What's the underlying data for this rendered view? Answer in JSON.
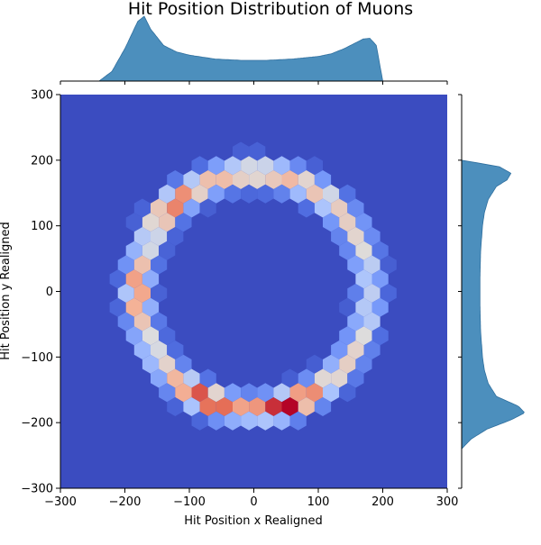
{
  "chart_data": {
    "type": "heatmap",
    "subtype": "hexbin-joint-plot",
    "title": "Hit Position Distribution of Muons",
    "xlabel": "Hit Position x Realigned",
    "ylabel": "Hit Position y Realigned",
    "xlim": [
      -300,
      300
    ],
    "ylim": [
      -300,
      300
    ],
    "x_ticks": [
      -300,
      -200,
      -100,
      0,
      100,
      200,
      300
    ],
    "y_ticks": [
      -300,
      -200,
      -100,
      0,
      100,
      200,
      300
    ],
    "x_tick_labels": [
      "−300",
      "−200",
      "−100",
      "0",
      "100",
      "200",
      "300"
    ],
    "y_tick_labels": [
      "−300",
      "−200",
      "−100",
      "0",
      "100",
      "200",
      "300"
    ],
    "grid": false,
    "colormap": "coolwarm",
    "colors": {
      "background_bin": "#3b4cc0",
      "low": "#3b4cc0",
      "mid": "#dddddd",
      "high": "#b40426",
      "marginal_fill": "#4c8fbd",
      "marginal_edge": "#2f6f9e"
    },
    "ring": {
      "center": [
        0,
        0
      ],
      "mean_radius": 180,
      "radial_sigma": 22,
      "hotspots": [
        {
          "x": -150,
          "y": 150,
          "relative_density": 1.0
        },
        {
          "x": 55,
          "y": -175,
          "relative_density": 0.95
        },
        {
          "x": -80,
          "y": -175,
          "relative_density": 0.85
        },
        {
          "x": -190,
          "y": 0,
          "relative_density": 0.85
        }
      ]
    },
    "marginal_x": {
      "orientation": "top",
      "bins_center": [
        -240,
        -220,
        -200,
        -180,
        -170,
        -160,
        -140,
        -120,
        -100,
        -80,
        -60,
        -40,
        -20,
        0,
        20,
        40,
        60,
        80,
        100,
        120,
        140,
        160,
        170,
        180,
        190,
        200
      ],
      "relative_counts": [
        0.0,
        0.15,
        0.5,
        0.92,
        1.0,
        0.8,
        0.55,
        0.45,
        0.4,
        0.37,
        0.34,
        0.33,
        0.32,
        0.32,
        0.32,
        0.33,
        0.34,
        0.36,
        0.38,
        0.42,
        0.5,
        0.6,
        0.65,
        0.66,
        0.55,
        0.0
      ]
    },
    "marginal_y": {
      "orientation": "right",
      "bins_center": [
        -240,
        -225,
        -210,
        -195,
        -185,
        -175,
        -160,
        -140,
        -120,
        -100,
        -60,
        -20,
        0,
        20,
        60,
        100,
        120,
        140,
        160,
        170,
        180,
        190,
        200
      ],
      "relative_counts": [
        0.0,
        0.15,
        0.4,
        0.8,
        1.0,
        0.9,
        0.55,
        0.42,
        0.36,
        0.33,
        0.3,
        0.29,
        0.29,
        0.29,
        0.3,
        0.33,
        0.36,
        0.42,
        0.55,
        0.72,
        0.78,
        0.6,
        0.0
      ]
    }
  }
}
